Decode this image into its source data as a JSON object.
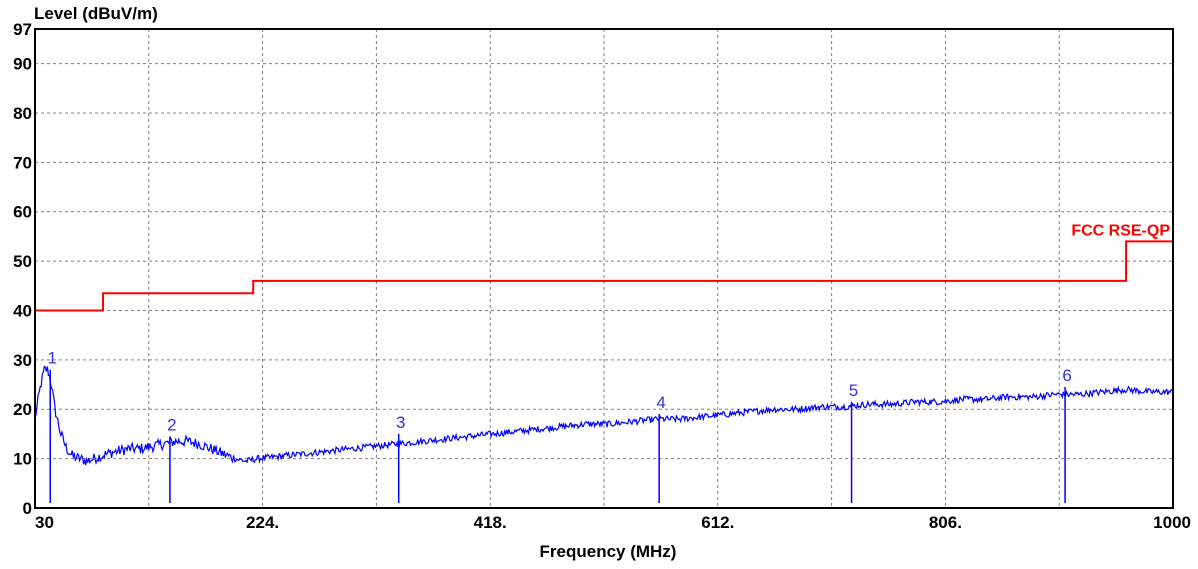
{
  "chart_data": {
    "type": "line",
    "title": "",
    "xlabel": "Frequency (MHz)",
    "ylabel": "Level (dBuV/m)",
    "xlim": [
      30,
      1000
    ],
    "ylim": [
      0,
      97
    ],
    "grid": true,
    "x_ticks": [
      {
        "value": 30,
        "label": "30"
      },
      {
        "value": 224,
        "label": "224."
      },
      {
        "value": 418,
        "label": "418."
      },
      {
        "value": 612,
        "label": "612."
      },
      {
        "value": 806,
        "label": "806."
      },
      {
        "value": 1000,
        "label": "1000"
      }
    ],
    "x_grid": [
      127,
      224,
      321,
      418,
      515,
      612,
      709,
      806,
      903
    ],
    "y_ticks": [
      {
        "value": 0,
        "label": "0"
      },
      {
        "value": 10,
        "label": "10"
      },
      {
        "value": 20,
        "label": "20"
      },
      {
        "value": 30,
        "label": "30"
      },
      {
        "value": 40,
        "label": "40"
      },
      {
        "value": 50,
        "label": "50"
      },
      {
        "value": 60,
        "label": "60"
      },
      {
        "value": 70,
        "label": "70"
      },
      {
        "value": 80,
        "label": "80"
      },
      {
        "value": 90,
        "label": "90"
      },
      {
        "value": 97,
        "label": "97"
      }
    ],
    "limit_line": {
      "name": "FCC RSE-QP",
      "color": "#ff0000",
      "points": [
        [
          30,
          40
        ],
        [
          88,
          40
        ],
        [
          88,
          43.5
        ],
        [
          216,
          43.5
        ],
        [
          216,
          46
        ],
        [
          960,
          46
        ],
        [
          960,
          54
        ],
        [
          1000,
          54
        ]
      ]
    },
    "trace": {
      "color": "#0000ff",
      "points": [
        [
          30,
          18
        ],
        [
          32,
          21
        ],
        [
          35,
          25
        ],
        [
          38,
          28
        ],
        [
          41,
          28
        ],
        [
          44,
          25
        ],
        [
          47,
          20
        ],
        [
          52,
          15
        ],
        [
          57,
          12
        ],
        [
          62,
          10.5
        ],
        [
          68,
          10
        ],
        [
          74,
          9.5
        ],
        [
          80,
          10
        ],
        [
          86,
          10.5
        ],
        [
          92,
          11
        ],
        [
          100,
          11.5
        ],
        [
          110,
          12
        ],
        [
          120,
          12
        ],
        [
          130,
          12.5
        ],
        [
          140,
          13
        ],
        [
          150,
          13.5
        ],
        [
          160,
          13.5
        ],
        [
          170,
          13
        ],
        [
          180,
          12
        ],
        [
          190,
          11
        ],
        [
          200,
          10
        ],
        [
          210,
          9.5
        ],
        [
          220,
          10
        ],
        [
          240,
          10.5
        ],
        [
          260,
          11
        ],
        [
          280,
          11.5
        ],
        [
          300,
          12
        ],
        [
          320,
          12.5
        ],
        [
          340,
          13
        ],
        [
          360,
          13.5
        ],
        [
          380,
          14
        ],
        [
          400,
          14.5
        ],
        [
          420,
          15
        ],
        [
          440,
          15.5
        ],
        [
          460,
          16
        ],
        [
          480,
          16.5
        ],
        [
          500,
          17
        ],
        [
          520,
          17
        ],
        [
          540,
          17.5
        ],
        [
          560,
          18
        ],
        [
          580,
          18
        ],
        [
          600,
          18.5
        ],
        [
          620,
          19
        ],
        [
          640,
          19.5
        ],
        [
          660,
          20
        ],
        [
          680,
          20
        ],
        [
          700,
          20.5
        ],
        [
          720,
          20.5
        ],
        [
          740,
          21
        ],
        [
          760,
          21
        ],
        [
          780,
          21.5
        ],
        [
          800,
          21.5
        ],
        [
          820,
          22
        ],
        [
          840,
          22
        ],
        [
          860,
          22.5
        ],
        [
          880,
          22.5
        ],
        [
          900,
          23
        ],
        [
          920,
          23
        ],
        [
          940,
          23.5
        ],
        [
          960,
          24
        ],
        [
          980,
          23.5
        ],
        [
          1000,
          23.5
        ]
      ]
    },
    "markers": [
      {
        "label": "1",
        "x": 43,
        "y": 28
      },
      {
        "label": "2",
        "x": 145,
        "y": 14.5
      },
      {
        "label": "3",
        "x": 340,
        "y": 15
      },
      {
        "label": "4",
        "x": 562,
        "y": 19
      },
      {
        "label": "5",
        "x": 726,
        "y": 21.5
      },
      {
        "label": "6",
        "x": 908,
        "y": 24.5
      }
    ]
  }
}
